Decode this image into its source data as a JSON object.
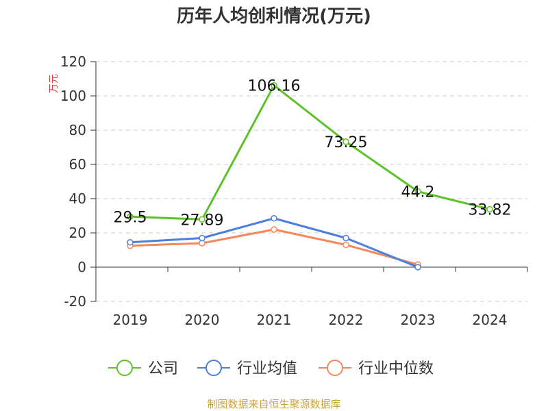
{
  "chart_data": {
    "type": "line",
    "title": "历年人均创利情况(万元)",
    "ylabel": "万元",
    "categories": [
      "2019",
      "2020",
      "2021",
      "2022",
      "2023",
      "2024"
    ],
    "ylim": [
      -20,
      120
    ],
    "yticks": [
      -20,
      0,
      20,
      40,
      60,
      80,
      100,
      120
    ],
    "grid": true,
    "legend_position": "bottom",
    "series": [
      {
        "name": "公司",
        "color": "#5cc227",
        "values": [
          29.5,
          27.89,
          106.16,
          73.25,
          44.2,
          33.82
        ],
        "labels": [
          "29.5",
          "27.89",
          "106.16",
          "73.25",
          "44.2",
          "33.82"
        ]
      },
      {
        "name": "行业均值",
        "color": "#4a7fe0",
        "values": [
          14.5,
          17,
          28.5,
          17,
          0,
          null
        ]
      },
      {
        "name": "行业中位数",
        "color": "#f5885a",
        "values": [
          12.5,
          14,
          22,
          13,
          1.5,
          null
        ]
      }
    ]
  },
  "footer": "制图数据来自恒生聚源数据库"
}
